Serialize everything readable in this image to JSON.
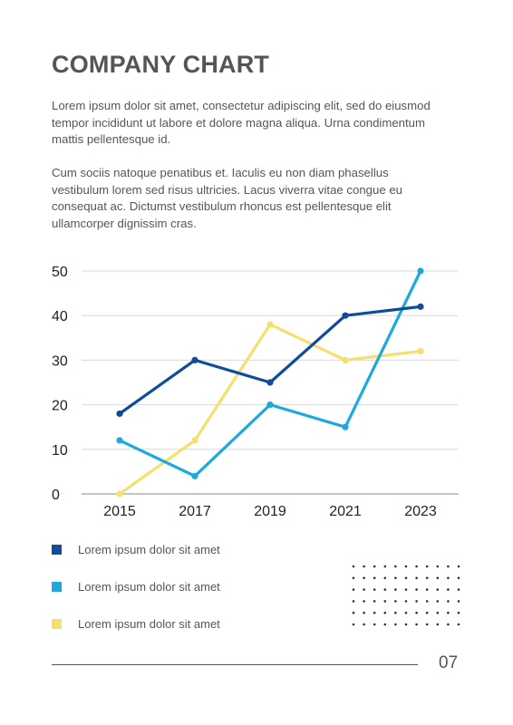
{
  "title": "COMPANY CHART",
  "paragraphs": [
    "Lorem ipsum dolor sit amet, consectetur adipiscing elit, sed do eiusmod tempor incididunt ut labore et dolore magna aliqua. Urna condimentum mattis pellentesque id.",
    "Cum sociis natoque penatibus et. Iaculis eu non diam phasellus vestibulum lorem sed risus ultricies. Lacus viverra vitae congue eu consequat ac. Dictumst vestibulum rhoncus est pellentesque elit ullamcorper dignissim cras."
  ],
  "chart_data": {
    "type": "line",
    "title": "",
    "xlabel": "",
    "ylabel": "",
    "categories": [
      "2015",
      "2017",
      "2019",
      "2021",
      "2023"
    ],
    "ylim": [
      0,
      50
    ],
    "yticks": [
      0,
      10,
      20,
      30,
      40,
      50
    ],
    "grid": true,
    "legend_position": "bottom-left",
    "series": [
      {
        "color": "#0f4c9a",
        "values": [
          18,
          30,
          25,
          40,
          42
        ]
      },
      {
        "color": "#1ea8e0",
        "values": [
          12,
          4,
          20,
          15,
          50
        ]
      },
      {
        "color": "#f4e06d",
        "values": [
          0,
          12,
          38,
          30,
          32
        ]
      }
    ]
  },
  "legend": [
    {
      "label": "Lorem ipsum dolor sit amet",
      "color": "#0f4c9a"
    },
    {
      "label": "Lorem ipsum dolor sit amet",
      "color": "#1ea8e0"
    },
    {
      "label": "Lorem ipsum dolor sit amet",
      "color": "#f4e06d"
    }
  ],
  "decoration": {
    "dot_color": "#333333",
    "dot_rows": 6,
    "dot_cols": 11
  },
  "footer": {
    "page_number": "07"
  }
}
